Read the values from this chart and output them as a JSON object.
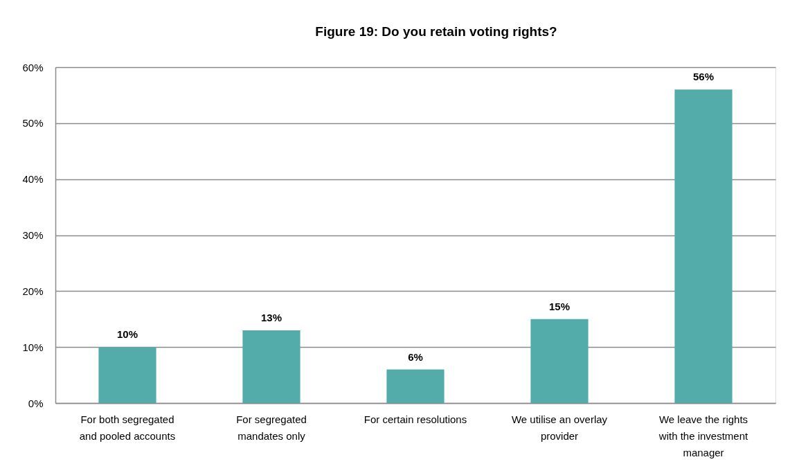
{
  "chart_data": {
    "type": "bar",
    "title": "Figure 19: Do you retain voting rights?",
    "categories": [
      "For both segregated and pooled accounts",
      "For segregated mandates only",
      "For certain resolutions",
      "We utilise an overlay provider",
      "We leave the rights with the investment manager"
    ],
    "values": [
      10,
      13,
      6,
      15,
      56
    ],
    "value_labels": [
      "10%",
      "13%",
      "6%",
      "15%",
      "56%"
    ],
    "color": "#53abaa",
    "ylim": [
      0,
      60
    ],
    "yticks": [
      {
        "value": 0,
        "label": "0%"
      },
      {
        "value": 10,
        "label": "10%"
      },
      {
        "value": 20,
        "label": "20%"
      },
      {
        "value": 30,
        "label": "30%"
      },
      {
        "value": 40,
        "label": "40%"
      },
      {
        "value": 50,
        "label": "50%"
      },
      {
        "value": 60,
        "label": "60%"
      }
    ],
    "grid": "y"
  }
}
